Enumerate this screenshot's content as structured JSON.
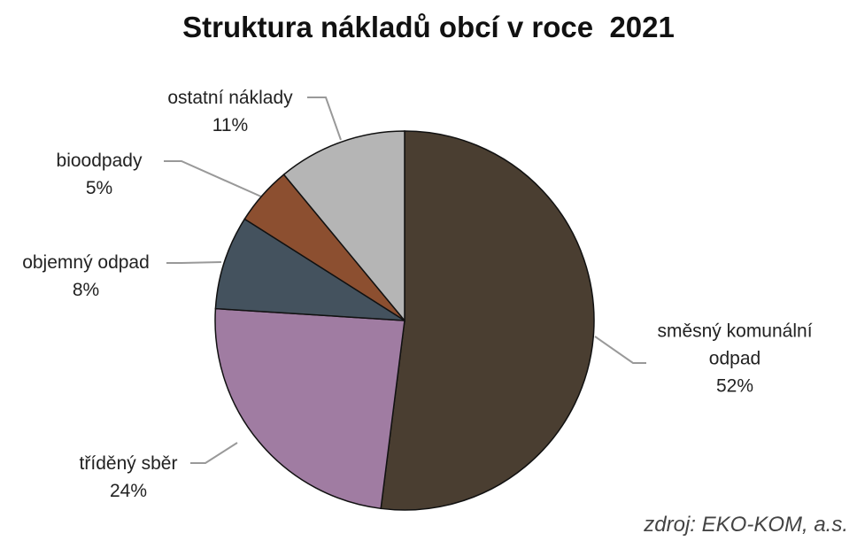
{
  "chart_data": {
    "type": "pie",
    "title": "Struktura nákladů obcí v roce  2021",
    "categories": [
      "směsný komunální odpad",
      "tříděný sběr",
      "objemný odpad",
      "bioodpady",
      "ostatní náklady"
    ],
    "values": [
      52,
      24,
      8,
      5,
      11
    ],
    "value_labels": [
      "52%",
      "24%",
      "8%",
      "5%",
      "11%"
    ],
    "colors": [
      "#4a3e31",
      "#a07ca2",
      "#44525e",
      "#8c4f30",
      "#b5b5b5"
    ],
    "annotation": "zdroj: EKO-KOM, a.s."
  }
}
